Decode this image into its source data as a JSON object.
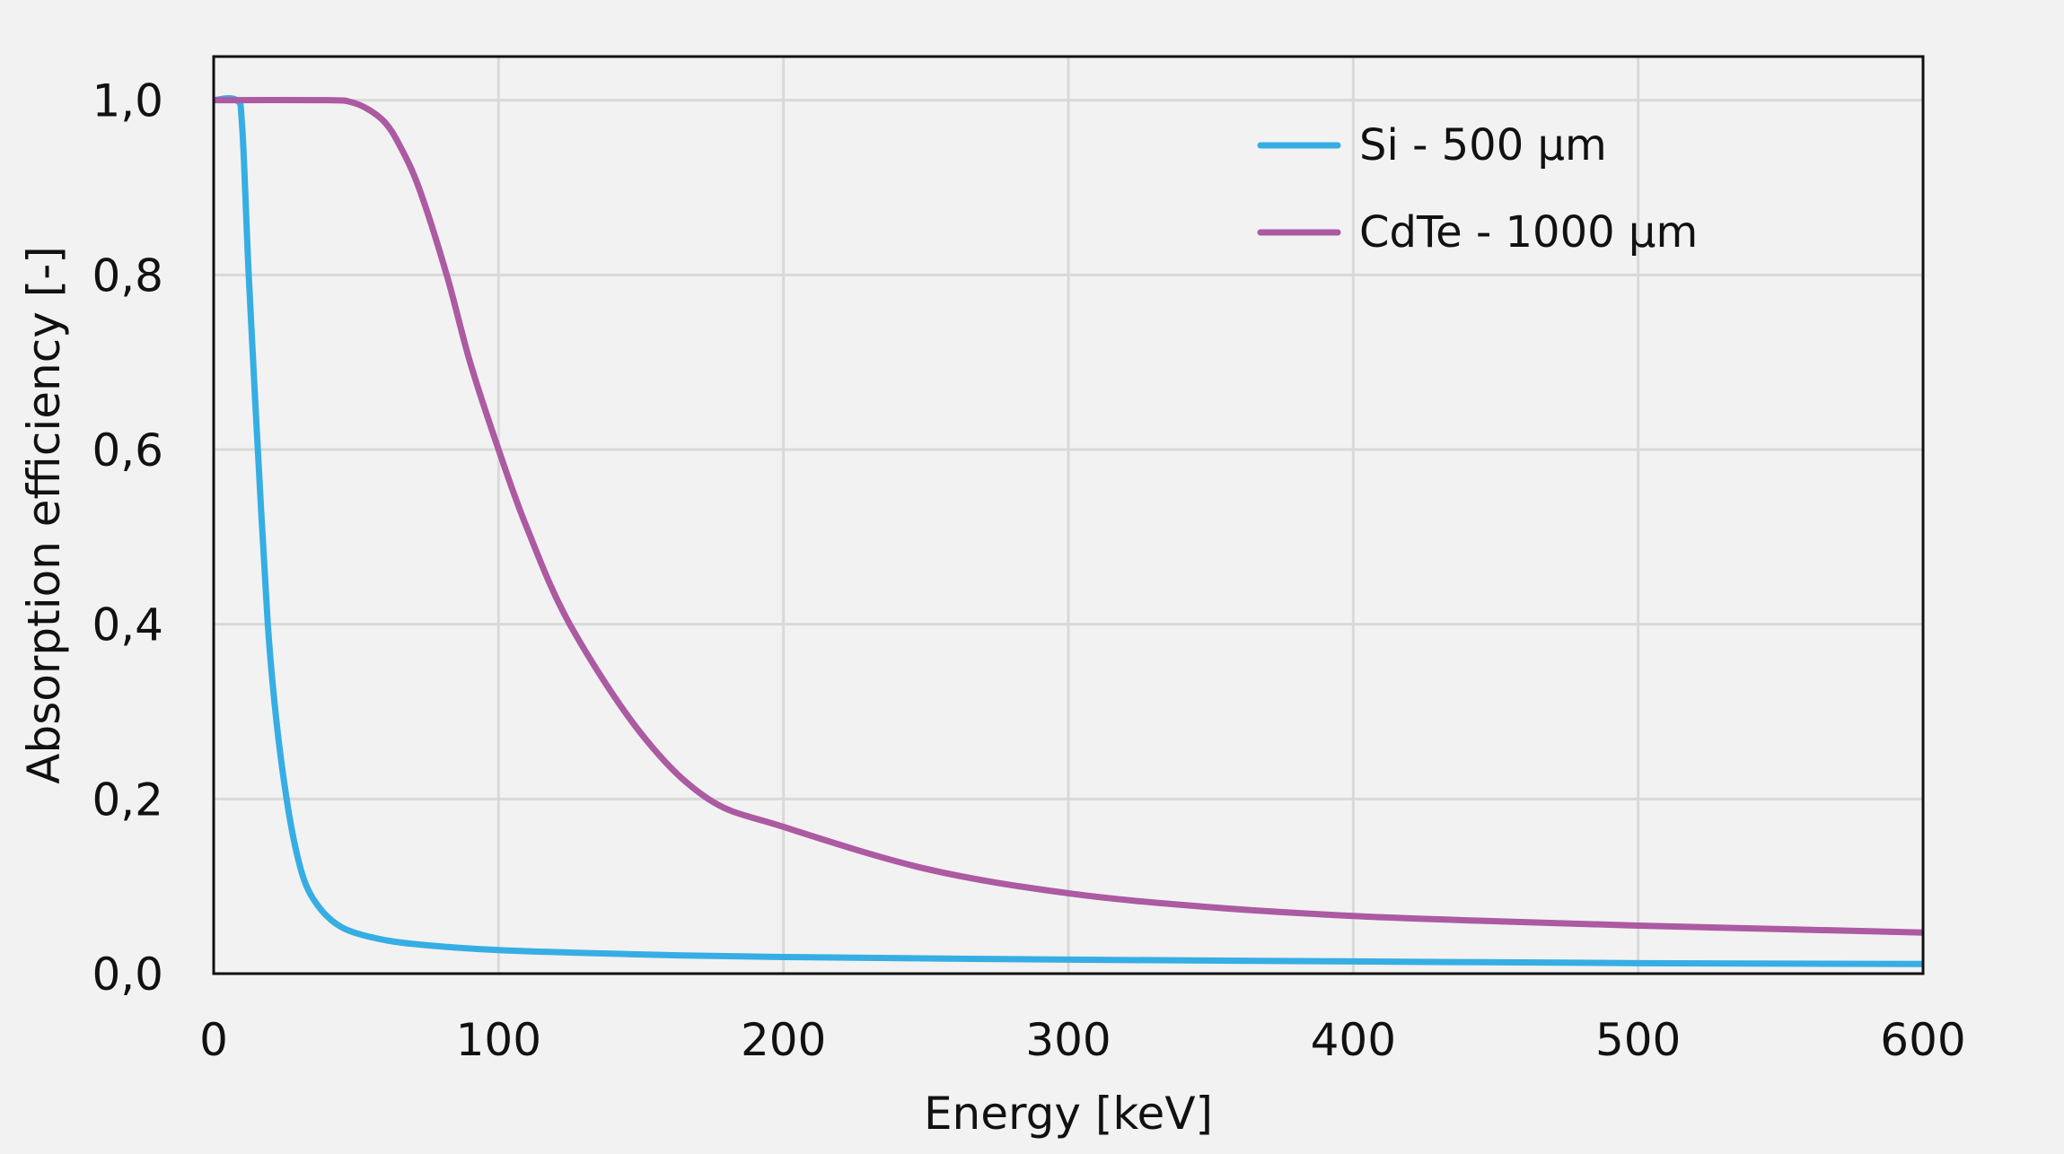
{
  "chart_data": {
    "type": "line",
    "title": "",
    "xlabel": "Energy [keV]",
    "ylabel": "Absorption efficiency [-]",
    "xlim": [
      0,
      600
    ],
    "ylim": [
      0,
      1.05
    ],
    "xticks": [
      0,
      100,
      200,
      300,
      400,
      500,
      600
    ],
    "xtick_labels": [
      "0",
      "100",
      "200",
      "300",
      "400",
      "500",
      "600"
    ],
    "yticks": [
      0,
      0.2,
      0.4,
      0.6,
      0.8,
      1.0
    ],
    "ytick_labels": [
      "0,0",
      "0,2",
      "0,4",
      "0,6",
      "0,8",
      "1,0"
    ],
    "grid": true,
    "legend_position": "top-right",
    "background": "#f2f2f2",
    "grid_color": "#d9d9d9",
    "series": [
      {
        "name": "Si - 500 µm",
        "color": "#36aee4",
        "x": [
          0,
          8,
          10,
          12.3,
          15.5,
          19,
          22,
          25.6,
          29,
          32.6,
          38,
          45,
          55,
          70,
          100,
          150,
          200,
          300,
          400,
          500,
          600
        ],
        "y": [
          1.0,
          1.0,
          0.97,
          0.8,
          0.6,
          0.4,
          0.29,
          0.2,
          0.14,
          0.1,
          0.072,
          0.053,
          0.042,
          0.034,
          0.027,
          0.022,
          0.019,
          0.016,
          0.014,
          0.012,
          0.011
        ]
      },
      {
        "name": "CdTe - 1000 µm",
        "color": "#ac5aa2",
        "x": [
          0,
          40,
          48,
          54,
          60,
          65,
          72,
          81.8,
          90,
          100,
          110,
          125,
          150,
          173.6,
          200,
          250,
          300,
          350,
          400,
          450,
          500,
          550,
          600
        ],
        "y": [
          1.0,
          1.0,
          0.998,
          0.99,
          0.975,
          0.95,
          0.9,
          0.8,
          0.7,
          0.6,
          0.51,
          0.4,
          0.275,
          0.2,
          0.168,
          0.12,
          0.092,
          0.076,
          0.066,
          0.06,
          0.055,
          0.051,
          0.047
        ]
      }
    ]
  }
}
